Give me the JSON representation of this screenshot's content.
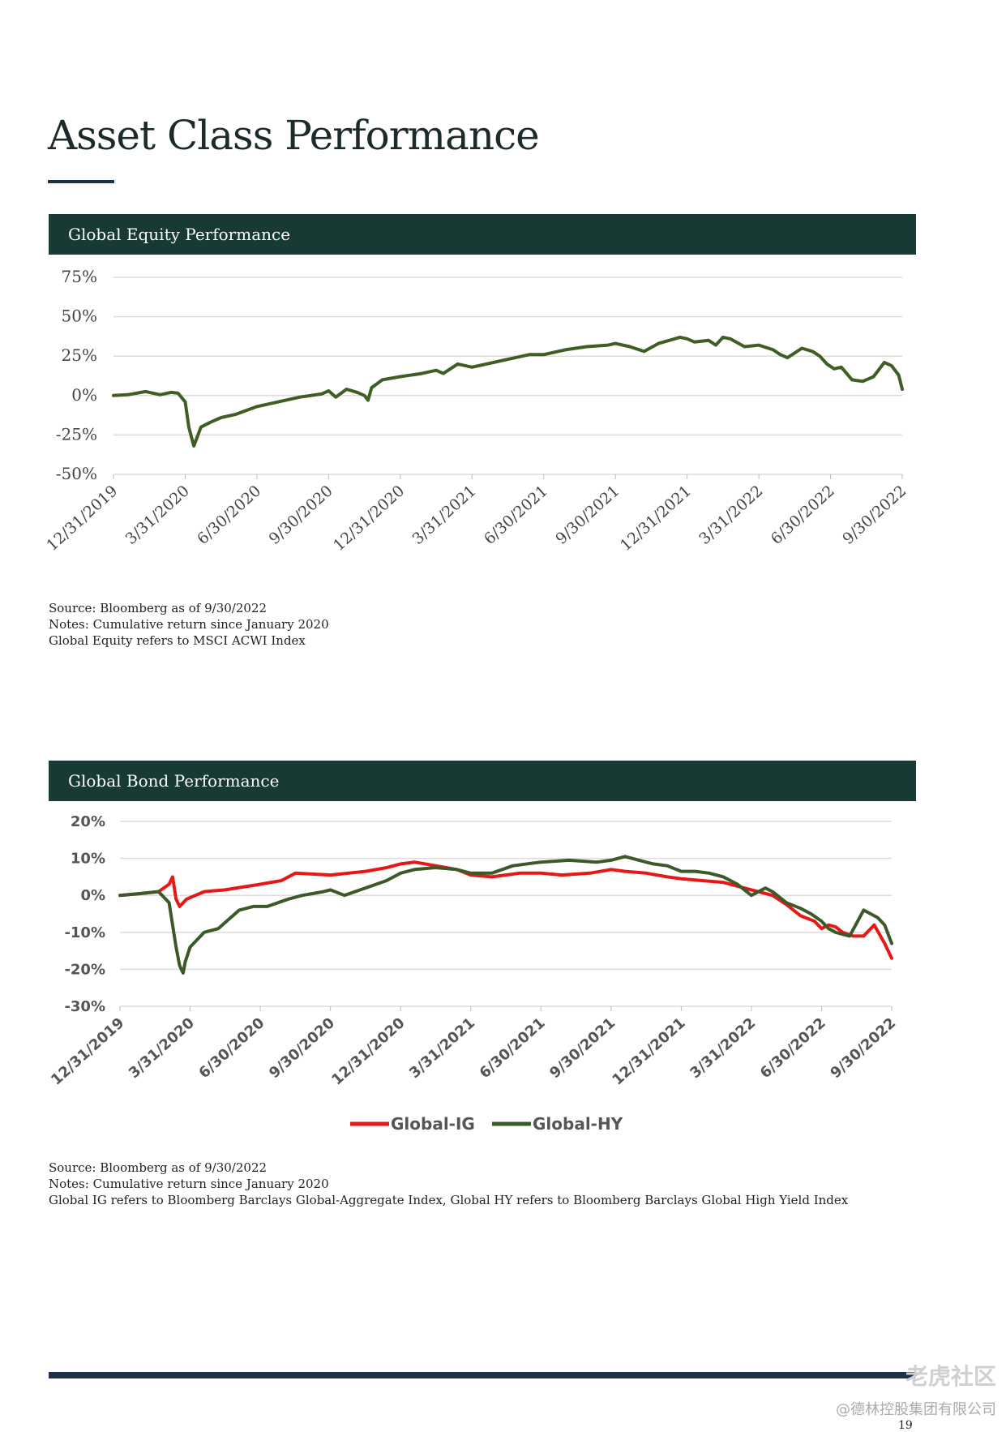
{
  "page": {
    "title": "Asset Class Performance",
    "page_number": "19",
    "colors": {
      "dark_teal": "#183a34",
      "navy": "#1d3148",
      "equity_line": "#3e5e22",
      "ig_line": "#e81717",
      "hy_line": "#3b5a27",
      "grid": "#dcdcdc"
    }
  },
  "equity": {
    "header": "Global Equity Performance",
    "notes": [
      "Source: Bloomberg as of 9/30/2022",
      "Notes: Cumulative return since January 2020",
      "Global Equity refers to MSCI ACWI Index"
    ]
  },
  "bond": {
    "header": "Global Bond Performance",
    "notes": [
      "Source: Bloomberg as of 9/30/2022",
      "Notes: Cumulative return since January 2020",
      "Global IG refers to Bloomberg Barclays Global-Aggregate Index, Global HY refers to Bloomberg Barclays Global High Yield Index"
    ]
  },
  "watermark": {
    "logo": "老虎社区",
    "sub": "@德林控股集团有限公司"
  },
  "chart_data": [
    {
      "id": "equity",
      "type": "line",
      "title": "Global Equity Performance",
      "xlabel": "",
      "ylabel": "",
      "ylim": [
        -50,
        75
      ],
      "yticks": [
        75,
        50,
        25,
        0,
        -25,
        -50
      ],
      "ytick_labels": [
        "75%",
        "50%",
        "25%",
        "0%",
        "-25%",
        "-50%"
      ],
      "categories": [
        "12/31/2019",
        "3/31/2020",
        "6/30/2020",
        "9/30/2020",
        "12/31/2020",
        "3/31/2021",
        "6/30/2021",
        "9/30/2021",
        "12/31/2021",
        "3/31/2022",
        "6/30/2022",
        "9/30/2022"
      ],
      "legend": "none",
      "series": [
        {
          "name": "Global Equity",
          "color": "#3e5e22",
          "x": [
            0,
            0.2,
            0.45,
            0.65,
            0.8,
            0.9,
            1.0,
            1.05,
            1.12,
            1.22,
            1.35,
            1.5,
            1.7,
            2.0,
            2.3,
            2.6,
            2.9,
            3.0,
            3.1,
            3.25,
            3.4,
            3.5,
            3.55,
            3.6,
            3.75,
            4.0,
            4.3,
            4.5,
            4.6,
            4.8,
            5.0,
            5.3,
            5.5,
            5.8,
            6.0,
            6.3,
            6.6,
            6.9,
            7.0,
            7.2,
            7.4,
            7.6,
            7.75,
            7.9,
            8.0,
            8.1,
            8.3,
            8.4,
            8.5,
            8.6,
            8.8,
            9.0,
            9.2,
            9.3,
            9.4,
            9.5,
            9.6,
            9.75,
            9.85,
            9.95,
            10.05,
            10.15,
            10.3,
            10.45,
            10.6,
            10.75,
            10.85,
            10.95,
            11.0
          ],
          "y": [
            0,
            0.5,
            2.5,
            0.5,
            2,
            1.5,
            -4,
            -20,
            -32,
            -20,
            -17,
            -14,
            -12,
            -7,
            -4,
            -1,
            1,
            3,
            -1,
            4,
            2,
            0,
            -3,
            5,
            10,
            12,
            14,
            16,
            14,
            20,
            18,
            21,
            23,
            26,
            26,
            29,
            31,
            32,
            33,
            31,
            28,
            33,
            35,
            37,
            36,
            34,
            35,
            32,
            37,
            36,
            31,
            32,
            29,
            26,
            24,
            27,
            30,
            28,
            25,
            20,
            17,
            18,
            10,
            9,
            12,
            21,
            19,
            13,
            4
          ]
        }
      ]
    },
    {
      "id": "bond",
      "type": "line",
      "title": "Global Bond Performance",
      "xlabel": "",
      "ylabel": "",
      "ylim": [
        -30,
        20
      ],
      "yticks": [
        20,
        10,
        0,
        -10,
        -20,
        -30
      ],
      "ytick_labels": [
        "20%",
        "10%",
        "0%",
        "-10%",
        "-20%",
        "-30%"
      ],
      "categories": [
        "12/31/2019",
        "3/31/2020",
        "6/30/2020",
        "9/30/2020",
        "12/31/2020",
        "3/31/2021",
        "6/30/2021",
        "9/30/2021",
        "12/31/2021",
        "3/31/2022",
        "6/30/2022",
        "9/30/2022"
      ],
      "legend": "bottom-center",
      "series": [
        {
          "name": "Global-IG",
          "color": "#e81717",
          "x": [
            0,
            0.3,
            0.55,
            0.7,
            0.75,
            0.8,
            0.85,
            0.95,
            1.2,
            1.5,
            2.0,
            2.3,
            2.5,
            3.0,
            3.5,
            3.8,
            3.9,
            4.0,
            4.2,
            4.5,
            4.8,
            5.0,
            5.3,
            5.7,
            6.0,
            6.3,
            6.7,
            7.0,
            7.2,
            7.5,
            7.8,
            8.0,
            8.3,
            8.6,
            8.8,
            9.0,
            9.3,
            9.5,
            9.7,
            9.9,
            10.0,
            10.1,
            10.2,
            10.3,
            10.45,
            10.6,
            10.75,
            10.9,
            11.0
          ],
          "y": [
            0,
            0.5,
            1,
            3,
            5,
            -1,
            -3,
            -1,
            1,
            1.5,
            3,
            4,
            6,
            5.5,
            6.5,
            7.5,
            8,
            8.5,
            9,
            8,
            7,
            5.5,
            5,
            6,
            6,
            5.5,
            6,
            7,
            6.5,
            6,
            5,
            4.5,
            4,
            3.5,
            2.5,
            1.5,
            0,
            -2.5,
            -5.5,
            -7,
            -9,
            -8,
            -8.5,
            -10,
            -11,
            -11,
            -8,
            -13,
            -17
          ]
        },
        {
          "name": "Global-HY",
          "color": "#3b5a27",
          "x": [
            0,
            0.3,
            0.55,
            0.7,
            0.75,
            0.8,
            0.85,
            0.9,
            0.93,
            1.0,
            1.1,
            1.2,
            1.4,
            1.7,
            1.9,
            2.1,
            2.4,
            2.6,
            2.9,
            3.0,
            3.2,
            3.5,
            3.8,
            4.0,
            4.2,
            4.5,
            4.8,
            5.0,
            5.3,
            5.6,
            6.0,
            6.4,
            6.8,
            7.0,
            7.2,
            7.4,
            7.6,
            7.8,
            8.0,
            8.2,
            8.4,
            8.6,
            8.8,
            9.0,
            9.2,
            9.3,
            9.5,
            9.7,
            9.85,
            10.0,
            10.1,
            10.2,
            10.4,
            10.6,
            10.8,
            10.9,
            11.0
          ],
          "y": [
            0,
            0.5,
            1,
            -2,
            -8,
            -14,
            -19,
            -21,
            -18,
            -14,
            -12,
            -10,
            -9,
            -4,
            -3,
            -3,
            -1,
            0,
            1,
            1.5,
            0,
            2,
            4,
            6,
            7,
            7.5,
            7,
            6,
            6,
            8,
            9,
            9.5,
            9,
            9.5,
            10.5,
            9.5,
            8.5,
            8,
            6.5,
            6.5,
            6,
            5,
            3,
            0,
            2,
            1,
            -2,
            -3.5,
            -5,
            -7,
            -9,
            -10,
            -11,
            -4,
            -6,
            -8,
            -13
          ]
        }
      ]
    }
  ]
}
